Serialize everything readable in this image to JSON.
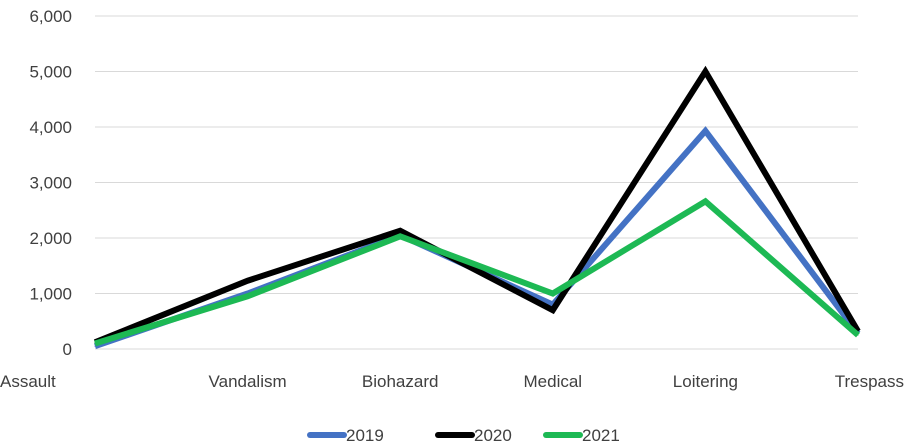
{
  "chart_data": {
    "type": "line",
    "categories": [
      "Assault",
      "Vandalism",
      "Biohazard",
      "Medical",
      "Loitering",
      "Trespass"
    ],
    "series": [
      {
        "name": "2019",
        "color": "#4472C4",
        "values": [
          50,
          1000,
          2050,
          800,
          3930,
          280
        ]
      },
      {
        "name": "2020",
        "color": "#000000",
        "values": [
          120,
          1230,
          2130,
          700,
          5000,
          320
        ]
      },
      {
        "name": "2021",
        "color": "#1DB954",
        "values": [
          100,
          950,
          2030,
          1000,
          2660,
          250
        ]
      }
    ],
    "ylim": [
      0,
      6000
    ],
    "yticks": [
      "0",
      "1,000",
      "2,000",
      "3,000",
      "4,000",
      "5,000",
      "6,000"
    ],
    "ytick_values": [
      0,
      1000,
      2000,
      3000,
      4000,
      5000,
      6000
    ],
    "grid": true,
    "legend_position": "bottom"
  }
}
